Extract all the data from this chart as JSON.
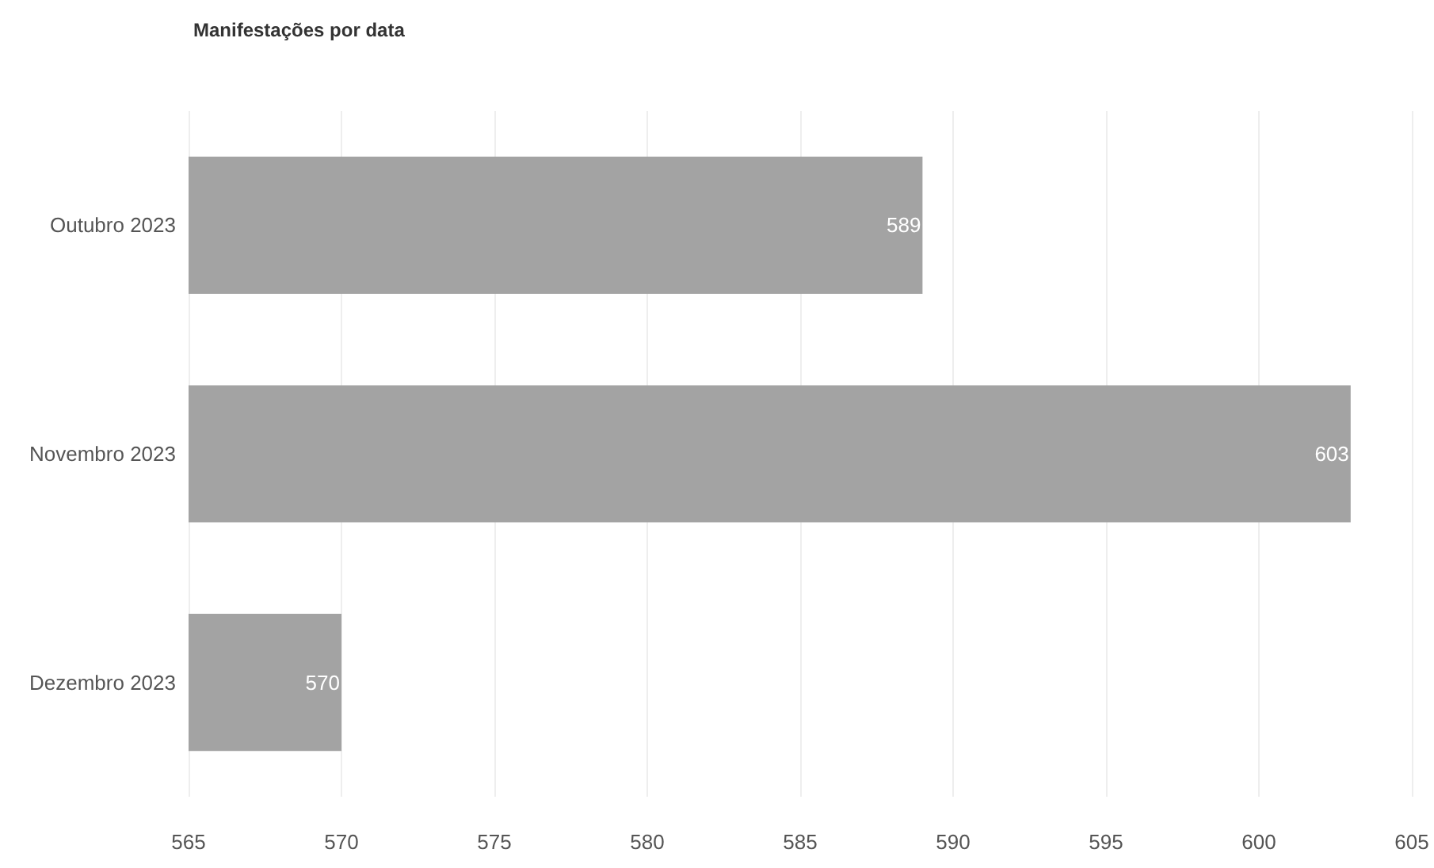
{
  "chart_data": {
    "type": "bar",
    "orientation": "horizontal",
    "title": "Manifestações por data",
    "categories": [
      "Outubro 2023",
      "Novembro 2023",
      "Dezembro 2023"
    ],
    "values": [
      589,
      603,
      570
    ],
    "color": "#a3a3a3",
    "xlim": [
      565,
      605
    ],
    "xticks": [
      565,
      570,
      575,
      580,
      585,
      590,
      595,
      600,
      605
    ],
    "grid": "x",
    "data_labels": true
  }
}
